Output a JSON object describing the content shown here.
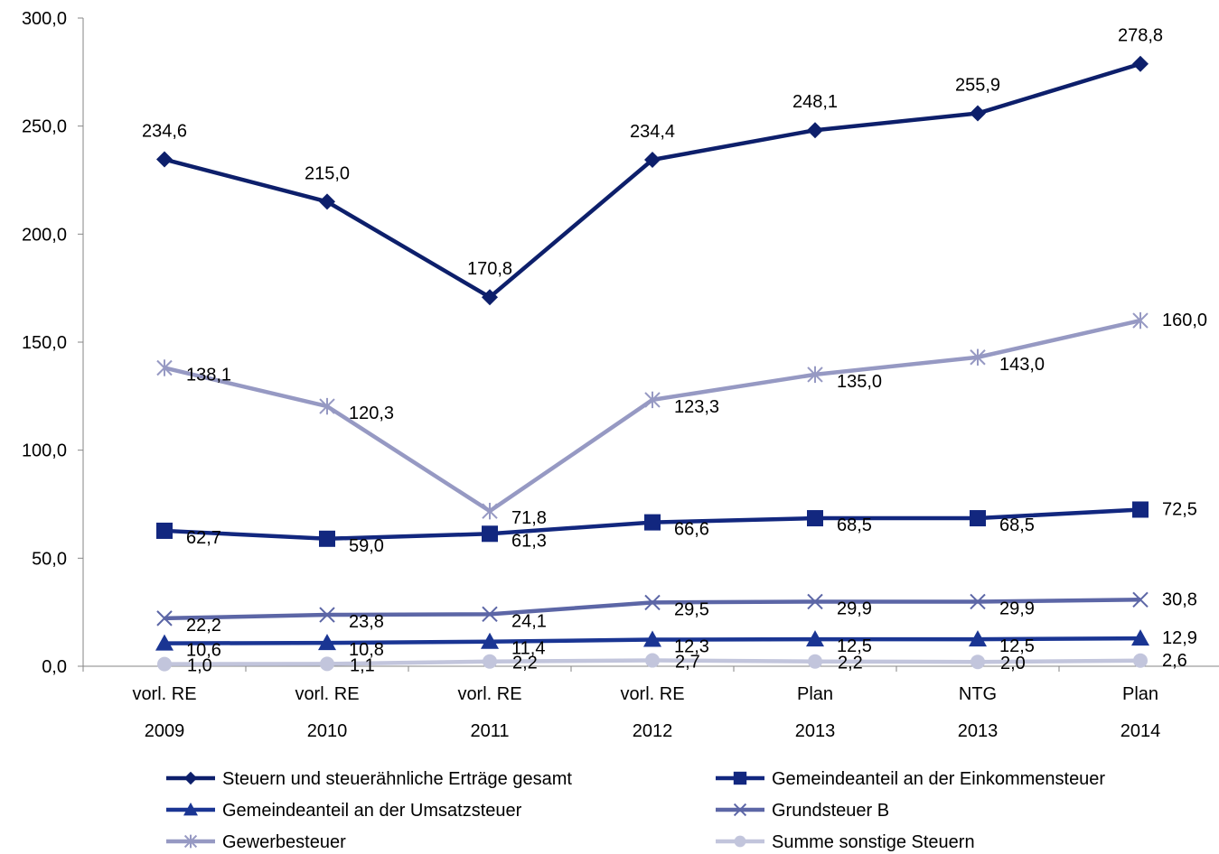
{
  "chart_data": {
    "type": "line",
    "categories": [
      [
        "vorl. RE",
        "2009"
      ],
      [
        "vorl. RE",
        "2010"
      ],
      [
        "vorl. RE",
        "2011"
      ],
      [
        "vorl. RE",
        "2012"
      ],
      [
        "Plan",
        "2013"
      ],
      [
        "NTG",
        "2013"
      ],
      [
        "Plan",
        "2014"
      ]
    ],
    "ylim": [
      0,
      300
    ],
    "yticks": [
      "0,0",
      "50,0",
      "100,0",
      "150,0",
      "200,0",
      "250,0",
      "300,0"
    ],
    "ytick_values": [
      0,
      50,
      100,
      150,
      200,
      250,
      300
    ],
    "grid": false,
    "legend_position": "bottom",
    "series": [
      {
        "name": "Steuern und steuerähnliche Erträge gesamt",
        "color": "#0d1f6b",
        "marker": "diamond",
        "values": [
          234.6,
          215.0,
          170.8,
          234.4,
          248.1,
          255.9,
          278.8
        ],
        "labels": [
          "234,6",
          "215,0",
          "170,8",
          "234,4",
          "248,1",
          "255,9",
          "278,8"
        ]
      },
      {
        "name": "Gemeindeanteil an der Einkommensteuer",
        "color": "#12277f",
        "marker": "square",
        "values": [
          62.7,
          59.0,
          61.3,
          66.6,
          68.5,
          68.5,
          72.5
        ],
        "labels": [
          "62,7",
          "59,0",
          "61,3",
          "66,6",
          "68,5",
          "68,5",
          "72,5"
        ]
      },
      {
        "name": "Gemeindeanteil an der Umsatzsteuer",
        "color": "#1a3593",
        "marker": "triangle",
        "values": [
          10.6,
          10.8,
          11.4,
          12.3,
          12.5,
          12.5,
          12.9
        ],
        "labels": [
          "10,6",
          "10,8",
          "11,4",
          "12,3",
          "12,5",
          "12,5",
          "12,9"
        ]
      },
      {
        "name": "Grundsteuer B",
        "color": "#5c66a6",
        "marker": "x",
        "values": [
          22.2,
          23.8,
          24.1,
          29.5,
          29.9,
          29.9,
          30.8
        ],
        "labels": [
          "22,2",
          "23,8",
          "24,1",
          "29,5",
          "29,9",
          "29,9",
          "30,8"
        ]
      },
      {
        "name": "Gewerbesteuer",
        "color": "#9699c3",
        "marker": "star",
        "values": [
          138.1,
          120.3,
          71.8,
          123.3,
          135.0,
          143.0,
          160.0
        ],
        "labels": [
          "138,1",
          "120,3",
          "71,8",
          "123,3",
          "135,0",
          "143,0",
          "160,0"
        ]
      },
      {
        "name": "Summe sonstige Steuern",
        "color": "#c2c5dc",
        "marker": "circle",
        "values": [
          1.0,
          1.1,
          2.2,
          2.7,
          2.2,
          2.0,
          2.6
        ],
        "labels": [
          "1,0",
          "1,1",
          "2,2",
          "2,7",
          "2,2",
          "2,0",
          "2,6"
        ]
      }
    ]
  }
}
